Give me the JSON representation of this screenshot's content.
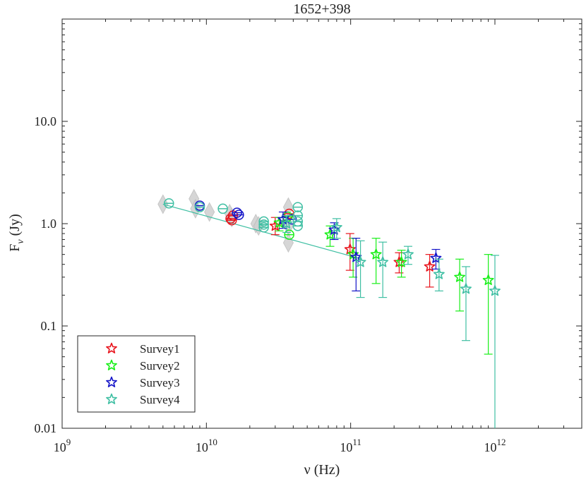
{
  "chart_data": {
    "type": "scatter",
    "title": "1652+398",
    "xlabel": "ν (Hz)",
    "ylabel": "F_ν (Jy)",
    "xscale": "log",
    "yscale": "log",
    "xlim": [
      1000000000,
      4000000000000
    ],
    "ylim": [
      0.01,
      100
    ],
    "x_ticks": [
      {
        "value": 1000000000,
        "base": "10",
        "exp": "9"
      },
      {
        "value": 10000000000,
        "base": "10",
        "exp": "10"
      },
      {
        "value": 100000000000,
        "base": "10",
        "exp": "11"
      },
      {
        "value": 1000000000000,
        "base": "10",
        "exp": "12"
      }
    ],
    "y_ticks": [
      {
        "value": 0.01,
        "label": "0.01"
      },
      {
        "value": 0.1,
        "label": "0.1"
      },
      {
        "value": 1,
        "label": "1.0"
      },
      {
        "value": 10,
        "label": "10.0"
      }
    ],
    "colors": {
      "Survey1": "#e8141c",
      "Survey2": "#18ef18",
      "Survey3": "#1414c8",
      "Survey4": "#3fbfa3",
      "historical": "#cfcfcf"
    },
    "legend": {
      "position": "bottom-left",
      "entries": [
        "Survey1",
        "Survey2",
        "Survey3",
        "Survey4"
      ]
    },
    "fit_line": {
      "color": "#3fbfa3",
      "x": [
        5000000000,
        120000000000
      ],
      "y": [
        1.55,
        0.45
      ]
    },
    "historical": [
      {
        "x": 5000000000,
        "y": 1.55
      },
      {
        "x": 8200000000,
        "y": 1.75
      },
      {
        "x": 8400000000,
        "y": 1.4
      },
      {
        "x": 10500000000,
        "y": 1.3
      },
      {
        "x": 14500000000,
        "y": 1.25
      },
      {
        "x": 15000000000,
        "y": 1.15
      },
      {
        "x": 22000000000,
        "y": 1.0
      },
      {
        "x": 23000000000,
        "y": 0.95
      },
      {
        "x": 37000000000,
        "y": 0.95
      },
      {
        "x": 37000000000,
        "y": 0.65
      },
      {
        "x": 37000000000,
        "y": 1.45
      }
    ],
    "series": [
      {
        "name": "Survey1",
        "color": "#e8141c",
        "points": [
          {
            "x": 14700000000,
            "y": 1.12,
            "marker": "circle"
          },
          {
            "x": 15000000000,
            "y": 1.08,
            "marker": "circle"
          },
          {
            "x": 15300000000,
            "y": 1.2,
            "marker": "circle"
          },
          {
            "x": 37500000000,
            "y": 1.25,
            "marker": "circle"
          },
          {
            "x": 30000000000,
            "y": 0.95,
            "lo": 0.78,
            "hi": 1.15,
            "marker": "star"
          },
          {
            "x": 99000000000,
            "y": 0.56,
            "lo": 0.35,
            "hi": 0.8,
            "marker": "star"
          },
          {
            "x": 217000000000,
            "y": 0.42,
            "lo": 0.33,
            "hi": 0.52,
            "marker": "star"
          },
          {
            "x": 353000000000,
            "y": 0.38,
            "lo": 0.24,
            "hi": 0.5,
            "marker": "star"
          }
        ]
      },
      {
        "name": "Survey2",
        "color": "#18ef18",
        "points": [
          {
            "x": 36500000000,
            "y": 1.17,
            "marker": "circle"
          },
          {
            "x": 37500000000,
            "y": 0.78,
            "marker": "circle"
          },
          {
            "x": 32000000000,
            "y": 1.02,
            "lo": 0.85,
            "hi": 1.15,
            "marker": "star"
          },
          {
            "x": 72000000000,
            "y": 0.78,
            "lo": 0.6,
            "hi": 0.95,
            "marker": "star"
          },
          {
            "x": 104000000000,
            "y": 0.5,
            "lo": 0.3,
            "hi": 0.72,
            "marker": "star"
          },
          {
            "x": 150000000000,
            "y": 0.5,
            "lo": 0.26,
            "hi": 0.72,
            "marker": "star"
          },
          {
            "x": 225000000000,
            "y": 0.42,
            "lo": 0.3,
            "hi": 0.55,
            "marker": "star"
          },
          {
            "x": 570000000000,
            "y": 0.3,
            "lo": 0.14,
            "hi": 0.45,
            "marker": "star"
          },
          {
            "x": 900000000000,
            "y": 0.28,
            "lo": 0.053,
            "hi": 0.5,
            "marker": "star"
          }
        ]
      },
      {
        "name": "Survey3",
        "color": "#1414c8",
        "points": [
          {
            "x": 9000000000,
            "y": 1.5,
            "marker": "circle"
          },
          {
            "x": 16300000000,
            "y": 1.28,
            "marker": "circle"
          },
          {
            "x": 16800000000,
            "y": 1.22,
            "marker": "circle"
          },
          {
            "x": 39000000000,
            "y": 1.1,
            "marker": "circle"
          },
          {
            "x": 34000000000,
            "y": 1.1,
            "lo": 0.9,
            "hi": 1.3,
            "marker": "star"
          },
          {
            "x": 77000000000,
            "y": 0.87,
            "lo": 0.7,
            "hi": 1.02,
            "marker": "star"
          },
          {
            "x": 109000000000,
            "y": 0.47,
            "lo": 0.22,
            "hi": 0.72,
            "marker": "star"
          },
          {
            "x": 390000000000,
            "y": 0.46,
            "lo": 0.36,
            "hi": 0.56,
            "marker": "star"
          }
        ]
      },
      {
        "name": "Survey4",
        "color": "#3fbfa3",
        "points": [
          {
            "x": 5500000000,
            "y": 1.58,
            "marker": "circle"
          },
          {
            "x": 9000000000,
            "y": 1.45,
            "marker": "circle"
          },
          {
            "x": 13000000000,
            "y": 1.4,
            "marker": "circle"
          },
          {
            "x": 25000000000,
            "y": 1.05,
            "marker": "circle"
          },
          {
            "x": 25000000000,
            "y": 0.98,
            "marker": "circle"
          },
          {
            "x": 25000000000,
            "y": 0.92,
            "marker": "circle"
          },
          {
            "x": 43000000000,
            "y": 1.45,
            "marker": "circle"
          },
          {
            "x": 43000000000,
            "y": 1.2,
            "marker": "circle"
          },
          {
            "x": 43000000000,
            "y": 1.05,
            "marker": "circle"
          },
          {
            "x": 43000000000,
            "y": 0.95,
            "marker": "circle"
          },
          {
            "x": 36000000000,
            "y": 1.0,
            "lo": 0.82,
            "hi": 1.2,
            "marker": "star"
          },
          {
            "x": 80000000000,
            "y": 0.92,
            "lo": 0.72,
            "hi": 1.12,
            "marker": "star"
          },
          {
            "x": 117000000000,
            "y": 0.42,
            "lo": 0.19,
            "hi": 0.68,
            "marker": "star"
          },
          {
            "x": 167000000000,
            "y": 0.42,
            "lo": 0.19,
            "hi": 0.66,
            "marker": "star"
          },
          {
            "x": 250000000000,
            "y": 0.5,
            "lo": 0.4,
            "hi": 0.6,
            "marker": "star"
          },
          {
            "x": 410000000000,
            "y": 0.32,
            "lo": 0.22,
            "hi": 0.45,
            "marker": "star"
          },
          {
            "x": 630000000000,
            "y": 0.23,
            "lo": 0.072,
            "hi": 0.38,
            "marker": "star"
          },
          {
            "x": 1000000000000,
            "y": 0.22,
            "lo": 0.009,
            "hi": 0.49,
            "marker": "star"
          }
        ]
      }
    ]
  }
}
